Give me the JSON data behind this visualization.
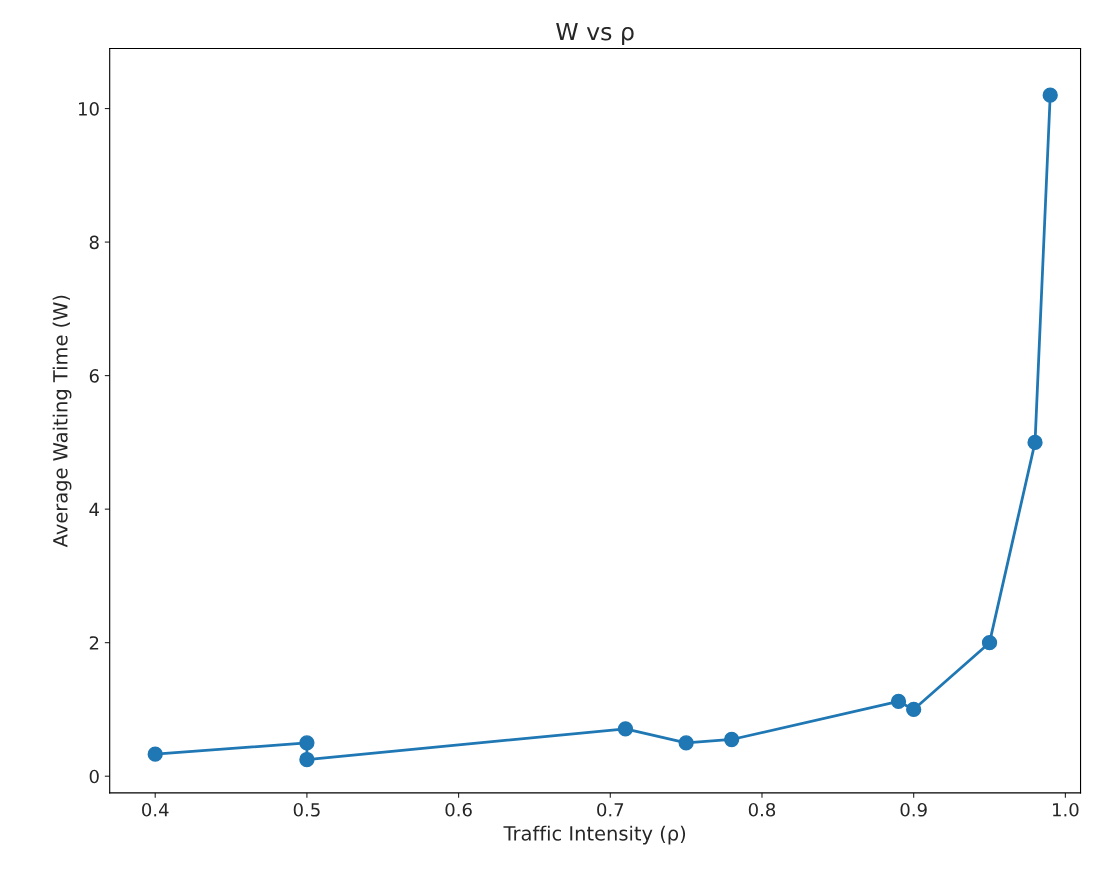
{
  "chart_data": {
    "type": "line",
    "title": "W vs ρ",
    "xlabel": "Traffic Intensity (ρ)",
    "ylabel": "Average Waiting Time (W)",
    "x": [
      0.4,
      0.5,
      0.5,
      0.71,
      0.75,
      0.78,
      0.89,
      0.9,
      0.95,
      0.98,
      0.99
    ],
    "values": [
      0.33,
      0.5,
      0.25,
      0.71,
      0.5,
      0.55,
      1.12,
      1.0,
      2.0,
      5.0,
      10.2
    ],
    "color": "#1f77b4",
    "marker": "circle",
    "line_style": "solid",
    "xlim": [
      0.37,
      1.01
    ],
    "ylim": [
      -0.25,
      10.9
    ],
    "xticks": [
      0.4,
      0.5,
      0.6,
      0.7,
      0.8,
      0.9,
      {
        "value": 1,
        "label": "1.0"
      }
    ],
    "yticks": [
      0,
      2,
      4,
      6,
      8,
      10
    ],
    "grid": false,
    "legend": false
  }
}
